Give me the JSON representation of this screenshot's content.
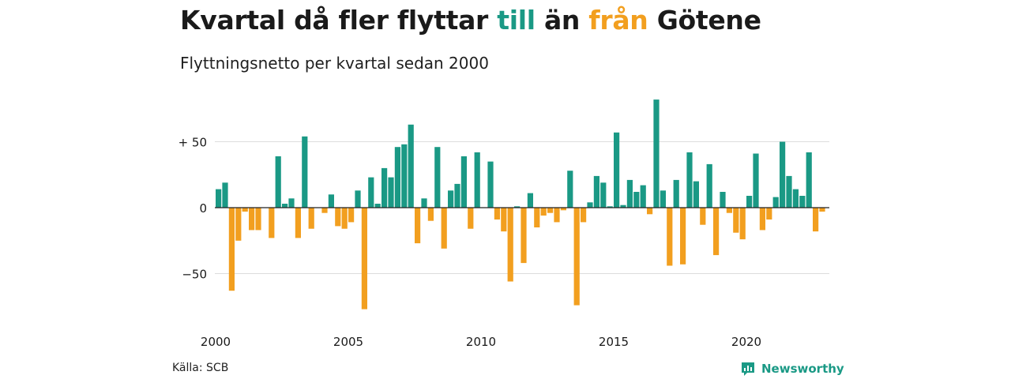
{
  "title": {
    "part1": "Kvartal då fler flyttar ",
    "highlight_in": "till",
    "part2": " än ",
    "highlight_out": "från",
    "part3": " Götene"
  },
  "subtitle": "Flyttningsnetto per kvartal sedan 2000",
  "source": "Källa: SCB",
  "logo": {
    "text": "Newsworthy",
    "icon": "bar-chart-icon"
  },
  "colors": {
    "positive": "#1a9985",
    "negative": "#f29f1f",
    "grid": "#dddddd",
    "zero": "#222222",
    "text": "#1a1a1a"
  },
  "chart_data": {
    "type": "bar",
    "title": "Kvartal då fler flyttar till än från Götene",
    "subtitle": "Flyttningsnetto per kvartal sedan 2000",
    "xlabel": "",
    "ylabel": "",
    "ylim": [
      -85,
      85
    ],
    "start_year": 2000,
    "yticks": [
      {
        "value": 50,
        "label": "+ 50"
      },
      {
        "value": 0,
        "label": "0"
      },
      {
        "value": -50,
        "label": "−50"
      }
    ],
    "xticks": [
      {
        "year": 2000,
        "label": "2000"
      },
      {
        "year": 2005,
        "label": "2005"
      },
      {
        "year": 2010,
        "label": "2010"
      },
      {
        "year": 2015,
        "label": "2015"
      },
      {
        "year": 2020,
        "label": "2020"
      }
    ],
    "grid": true,
    "values": [
      14,
      19,
      -63,
      -25,
      -3,
      -17,
      -17,
      0,
      -23,
      39,
      3,
      7,
      -23,
      54,
      -16,
      0,
      -4,
      10,
      -14,
      -16,
      -11,
      13,
      -77,
      23,
      3,
      30,
      23,
      46,
      48,
      63,
      -27,
      7,
      -10,
      46,
      -31,
      13,
      18,
      39,
      -16,
      42,
      0,
      35,
      -9,
      -18,
      -56,
      1,
      -42,
      11,
      -15,
      -6,
      -4,
      -11,
      -2,
      28,
      -74,
      -11,
      4,
      24,
      19,
      1,
      57,
      2,
      21,
      12,
      17,
      -5,
      82,
      13,
      -44,
      21,
      -43,
      42,
      20,
      -13,
      33,
      -36,
      12,
      -4,
      -19,
      -24,
      9,
      41,
      -17,
      -9,
      8,
      50,
      24,
      14,
      9,
      42,
      -18,
      -3
    ]
  }
}
